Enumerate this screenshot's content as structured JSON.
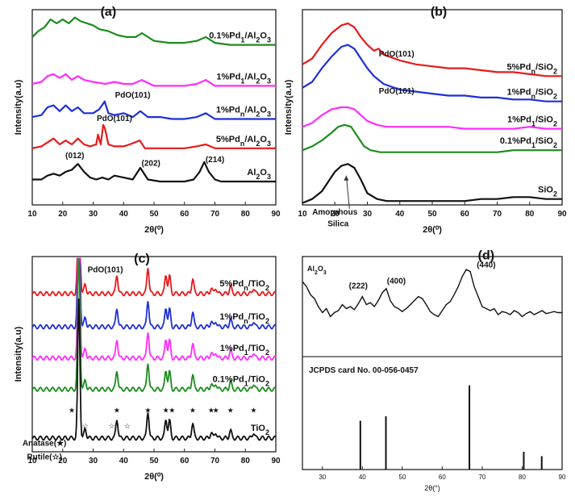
{
  "colors": {
    "red": "#e8191b",
    "blue": "#1f2fd8",
    "magenta": "#ff2bff",
    "green": "#1c8c1c",
    "black": "#111111"
  },
  "chart_data": [
    {
      "panel": "(a)",
      "type": "line",
      "xlabel": "2θ(⁰)",
      "ylabel": "Intensity(a.u)",
      "xlim": [
        10,
        90
      ],
      "xticks": [
        "10",
        "20",
        "30",
        "40",
        "50",
        "60",
        "70",
        "80",
        "90"
      ],
      "series": [
        {
          "name": "0.1%Pd1/Al2O3",
          "label_html": "0.1%Pd<tspan baseline-shift='sub' font-size='9'>1</tspan>/Al<tspan baseline-shift='sub' font-size='9'>2</tspan>O<tspan baseline-shift='sub' font-size='9'>3</tspan>",
          "color": "green",
          "x": [
            10,
            12,
            14,
            16,
            18,
            20,
            22,
            24,
            26,
            28,
            30,
            32,
            35,
            38,
            41,
            44,
            46,
            50,
            55,
            60,
            64,
            67,
            70,
            75,
            80,
            85,
            90
          ],
          "y": [
            0.86,
            0.89,
            0.91,
            0.95,
            0.93,
            0.95,
            0.93,
            0.96,
            0.94,
            0.93,
            0.92,
            0.9,
            0.89,
            0.87,
            0.86,
            0.86,
            0.88,
            0.84,
            0.83,
            0.83,
            0.84,
            0.86,
            0.83,
            0.82,
            0.82,
            0.82,
            0.82
          ]
        },
        {
          "name": "1%Pd1/Al2O3",
          "label_html": "1%Pd<tspan baseline-shift='sub' font-size='9'>1</tspan>/Al<tspan baseline-shift='sub' font-size='9'>2</tspan>O<tspan baseline-shift='sub' font-size='9'>3</tspan>",
          "color": "magenta",
          "x": [
            10,
            13,
            15,
            17,
            19,
            21,
            23,
            25,
            27,
            30,
            34,
            37,
            40,
            43,
            46,
            50,
            55,
            60,
            64,
            67,
            70,
            75,
            80,
            85,
            90
          ],
          "y": [
            0.62,
            0.63,
            0.66,
            0.67,
            0.65,
            0.67,
            0.64,
            0.66,
            0.64,
            0.63,
            0.62,
            0.63,
            0.62,
            0.62,
            0.64,
            0.61,
            0.61,
            0.61,
            0.62,
            0.64,
            0.61,
            0.61,
            0.61,
            0.61,
            0.61
          ]
        },
        {
          "name": "1%Pdn/Al2O3",
          "label_html": "1%Pd<tspan baseline-shift='sub' font-size='9'>n</tspan>/Al<tspan baseline-shift='sub' font-size='9'>2</tspan>O<tspan baseline-shift='sub' font-size='9'>3</tspan>",
          "color": "blue",
          "x": [
            10,
            13,
            15,
            17,
            19,
            21,
            23,
            25,
            27,
            30,
            32,
            33.8,
            35,
            37,
            40,
            43,
            45.5,
            48,
            52,
            56,
            60,
            64,
            67,
            70,
            75,
            80,
            85,
            90
          ],
          "y": [
            0.45,
            0.46,
            0.5,
            0.51,
            0.48,
            0.51,
            0.48,
            0.5,
            0.47,
            0.47,
            0.49,
            0.53,
            0.47,
            0.46,
            0.47,
            0.45,
            0.48,
            0.45,
            0.45,
            0.44,
            0.44,
            0.45,
            0.47,
            0.44,
            0.44,
            0.44,
            0.44,
            0.44
          ]
        },
        {
          "name": "5%Pdn/Al2O3",
          "label_html": "5%Pd<tspan baseline-shift='sub' font-size='9'>n</tspan>/Al<tspan baseline-shift='sub' font-size='9'>2</tspan>O<tspan baseline-shift='sub' font-size='9'>3</tspan>",
          "color": "red",
          "x": [
            10,
            13,
            15,
            17,
            19,
            21,
            23,
            25,
            27,
            29,
            31,
            31.6,
            32.5,
            33.3,
            33.9,
            35,
            37,
            40,
            42,
            45.3,
            47,
            50,
            55,
            60,
            64,
            67,
            70,
            75,
            80,
            85,
            90
          ],
          "y": [
            0.29,
            0.3,
            0.32,
            0.34,
            0.31,
            0.33,
            0.31,
            0.34,
            0.31,
            0.3,
            0.31,
            0.36,
            0.31,
            0.41,
            0.39,
            0.31,
            0.3,
            0.3,
            0.31,
            0.33,
            0.29,
            0.29,
            0.29,
            0.29,
            0.3,
            0.31,
            0.29,
            0.29,
            0.29,
            0.29,
            0.29
          ]
        },
        {
          "name": "Al2O3",
          "label_html": "Al<tspan baseline-shift='sub' font-size='9'>2</tspan>O<tspan baseline-shift='sub' font-size='9'>3</tspan>",
          "color": "black",
          "x": [
            10,
            13,
            15,
            17,
            19,
            21,
            23,
            25,
            27,
            29,
            31,
            33,
            35,
            37,
            40,
            43,
            45.5,
            48,
            52,
            56,
            60,
            63,
            65,
            66.5,
            68,
            70,
            72,
            75,
            80,
            85,
            90
          ],
          "y": [
            0.13,
            0.13,
            0.15,
            0.16,
            0.15,
            0.17,
            0.18,
            0.21,
            0.17,
            0.14,
            0.13,
            0.14,
            0.13,
            0.15,
            0.14,
            0.13,
            0.19,
            0.13,
            0.12,
            0.12,
            0.12,
            0.13,
            0.17,
            0.22,
            0.17,
            0.13,
            0.12,
            0.12,
            0.12,
            0.12,
            0.12
          ]
        }
      ],
      "annotations": [
        {
          "text": "(a)",
          "x": 35,
          "y": 0.97,
          "size": 16
        },
        {
          "text": "PdO(101)",
          "x": 43,
          "y": 0.55,
          "size": 10
        },
        {
          "text": "PdO(101)",
          "x": 37,
          "y": 0.43,
          "size": 10
        },
        {
          "text": "(012)",
          "x": 24,
          "y": 0.24,
          "size": 10
        },
        {
          "text": "(202)",
          "x": 49,
          "y": 0.2,
          "size": 10
        },
        {
          "text": "(214)",
          "x": 70,
          "y": 0.22,
          "size": 10
        }
      ]
    },
    {
      "panel": "(b)",
      "type": "line",
      "xlabel": "2θ(⁰)",
      "ylabel": "Intensity(a.u)",
      "xlim": [
        10,
        90
      ],
      "xticks": [
        "10",
        "20",
        "30",
        "40",
        "50",
        "60",
        "70",
        "80",
        "90"
      ],
      "series": [
        {
          "name": "5%Pdn/SiO2",
          "label_html": "5%Pd<tspan baseline-shift='sub' font-size='9'>n</tspan>/SiO<tspan baseline-shift='sub' font-size='9'>2</tspan>",
          "color": "red",
          "x": [
            10,
            13,
            16,
            19,
            22,
            24,
            26,
            28,
            30,
            32,
            33.5,
            35,
            40,
            45,
            50,
            55,
            60,
            65,
            70,
            75,
            80,
            85,
            90
          ],
          "y": [
            0.72,
            0.75,
            0.82,
            0.88,
            0.92,
            0.93,
            0.91,
            0.86,
            0.82,
            0.79,
            0.8,
            0.77,
            0.74,
            0.72,
            0.71,
            0.7,
            0.7,
            0.69,
            0.68,
            0.68,
            0.67,
            0.66,
            0.66
          ]
        },
        {
          "name": "1%Pdn/SiO2",
          "label_html": "1%Pd<tspan baseline-shift='sub' font-size='9'>n</tspan>/SiO<tspan baseline-shift='sub' font-size='9'>2</tspan>",
          "color": "blue",
          "x": [
            10,
            13,
            16,
            19,
            22,
            24,
            26,
            28,
            30,
            32,
            33.5,
            35,
            40,
            45,
            50,
            55,
            60,
            65,
            70,
            75,
            80,
            85,
            90
          ],
          "y": [
            0.6,
            0.63,
            0.7,
            0.76,
            0.81,
            0.82,
            0.8,
            0.75,
            0.7,
            0.66,
            0.64,
            0.62,
            0.59,
            0.58,
            0.57,
            0.56,
            0.56,
            0.55,
            0.55,
            0.54,
            0.54,
            0.53,
            0.53
          ]
        },
        {
          "name": "1%Pd1/SiO2",
          "label_html": "1%Pd<tspan baseline-shift='sub' font-size='9'>1</tspan>/SiO<tspan baseline-shift='sub' font-size='9'>2</tspan>",
          "color": "magenta",
          "x": [
            10,
            13,
            16,
            19,
            22,
            24,
            26,
            28,
            30,
            33,
            36,
            40,
            45,
            50,
            55,
            60,
            65,
            70,
            75,
            80,
            85,
            90
          ],
          "y": [
            0.4,
            0.42,
            0.46,
            0.49,
            0.5,
            0.5,
            0.49,
            0.46,
            0.43,
            0.41,
            0.4,
            0.4,
            0.4,
            0.4,
            0.4,
            0.39,
            0.39,
            0.39,
            0.39,
            0.4,
            0.39,
            0.39
          ]
        },
        {
          "name": "0.1%Pd1/SiO2",
          "label_html": "0.1%Pd<tspan baseline-shift='sub' font-size='9'>1</tspan>/SiO<tspan baseline-shift='sub' font-size='9'>2</tspan>",
          "color": "green",
          "x": [
            10,
            13,
            16,
            19,
            21,
            23,
            25,
            27,
            29,
            31,
            34,
            38,
            45,
            50,
            55,
            60,
            65,
            70,
            75,
            80,
            85,
            90
          ],
          "y": [
            0.28,
            0.3,
            0.33,
            0.37,
            0.4,
            0.41,
            0.4,
            0.35,
            0.3,
            0.28,
            0.27,
            0.27,
            0.27,
            0.27,
            0.27,
            0.27,
            0.27,
            0.27,
            0.28,
            0.28,
            0.28,
            0.28
          ]
        },
        {
          "name": "SiO2",
          "label_html": "SiO<tspan baseline-shift='sub' font-size='9'>2</tspan>",
          "color": "black",
          "x": [
            10,
            13,
            16,
            18,
            20,
            22,
            24,
            26,
            28,
            30,
            33,
            36,
            40,
            45,
            50,
            55,
            60,
            65,
            70,
            75,
            80,
            85,
            90
          ],
          "y": [
            0.01,
            0.03,
            0.07,
            0.12,
            0.17,
            0.2,
            0.21,
            0.19,
            0.13,
            0.06,
            0.03,
            0.02,
            0.02,
            0.02,
            0.02,
            0.02,
            0.02,
            0.03,
            0.03,
            0.04,
            0.04,
            0.03,
            0.03
          ]
        }
      ],
      "annotations": [
        {
          "text": "(b)",
          "x": 52,
          "y": 0.97,
          "size": 16
        },
        {
          "text": "PdO(101)",
          "x": 39,
          "y": 0.76,
          "size": 10
        },
        {
          "text": "PdO(101)",
          "x": 39,
          "y": 0.57,
          "size": 10
        },
        {
          "text": "Amorphous",
          "x": 20,
          "y": -0.05,
          "size": 10
        },
        {
          "text": "Silica",
          "x": 21,
          "y": -0.11,
          "size": 10
        }
      ]
    },
    {
      "panel": "(c)",
      "type": "line",
      "xlabel": "2θ(⁰)",
      "ylabel": "Intensity(a.u)",
      "xlim": [
        10,
        90
      ],
      "xticks": [
        "10",
        "20",
        "30",
        "40",
        "50",
        "60",
        "70",
        "80",
        "90"
      ],
      "series": [
        {
          "name": "5%Pdn/TiO2",
          "label_html": "5%Pd<tspan baseline-shift='sub' font-size='9'>n</tspan>/TiO<tspan baseline-shift='sub' font-size='9'>2</tspan>",
          "color": "red",
          "base": 0.81
        },
        {
          "name": "1%Pdn/TiO2",
          "label_html": "1%Pd<tspan baseline-shift='sub' font-size='9'>n</tspan>/TiO<tspan baseline-shift='sub' font-size='9'>2</tspan>",
          "color": "blue",
          "base": 0.64
        },
        {
          "name": "1%Pd1/TiO2",
          "label_html": "1%Pd<tspan baseline-shift='sub' font-size='9'>1</tspan>/TiO<tspan baseline-shift='sub' font-size='9'>2</tspan>",
          "color": "magenta",
          "base": 0.48
        },
        {
          "name": "0.1%Pd1/TiO2",
          "label_html": "0.1%Pd<tspan baseline-shift='sub' font-size='9'>1</tspan>/TiO<tspan baseline-shift='sub' font-size='9'>2</tspan>",
          "color": "green",
          "base": 0.32
        },
        {
          "name": "TiO2",
          "label_html": "TiO<tspan baseline-shift='sub' font-size='9'>2</tspan>",
          "color": "black",
          "base": 0.07
        }
      ],
      "peaks": [
        {
          "x": 25.3,
          "h": 0.75
        },
        {
          "x": 27.4,
          "h": 0.05
        },
        {
          "x": 37.8,
          "h": 0.1
        },
        {
          "x": 48.0,
          "h": 0.14
        },
        {
          "x": 53.9,
          "h": 0.1
        },
        {
          "x": 55.1,
          "h": 0.09
        },
        {
          "x": 62.7,
          "h": 0.08
        },
        {
          "x": 68.8,
          "h": 0.03
        },
        {
          "x": 70.3,
          "h": 0.03
        },
        {
          "x": 75.1,
          "h": 0.04
        },
        {
          "x": 82.7,
          "h": 0.03
        }
      ],
      "anatase_marks": [
        23,
        37.8,
        48.0,
        53.9,
        55.9,
        62.7,
        68.8,
        70.3,
        75.1,
        82.7
      ],
      "rutile_marks": [
        27.4,
        36.1,
        41.2
      ],
      "annotations": [
        {
          "text": "(c)",
          "x": 46,
          "y": 0.97,
          "size": 16
        },
        {
          "text": "PdO(101)",
          "x": 34,
          "y": 0.92,
          "size": 10
        },
        {
          "text": "Anatase(★)",
          "x": 14,
          "y": 0.03,
          "size": 10
        },
        {
          "text": "Rutile(☆)",
          "x": 14,
          "y": -0.04,
          "size": 10
        }
      ]
    },
    {
      "panel": "(d)",
      "type": "line",
      "xlabel": "2θ(°)",
      "xlim": [
        25,
        90
      ],
      "xticks": [
        "30",
        "40",
        "50",
        "60",
        "70",
        "80",
        "90"
      ],
      "series_title_html": "Al<tspan baseline-shift='sub' font-size='7'>2</tspan>O<tspan baseline-shift='sub' font-size='7'>3</tspan>",
      "card_label": "JCPDS card No. 00-056-0457",
      "pattern": {
        "x": [
          25,
          26,
          27,
          28,
          29,
          30,
          31,
          32,
          33,
          34,
          35,
          36,
          37,
          38,
          39,
          40,
          41,
          42,
          43,
          44,
          45,
          46,
          47,
          48,
          49,
          50,
          51,
          52,
          53,
          54,
          55,
          56,
          57,
          58,
          59,
          60,
          61,
          62,
          63,
          64,
          65,
          66,
          67,
          68,
          69,
          70,
          71,
          72,
          73,
          74,
          75,
          76,
          77,
          78,
          79,
          80,
          81,
          82,
          83,
          84,
          85,
          86,
          87,
          88,
          89,
          90
        ],
        "y": [
          0.75,
          0.7,
          0.62,
          0.58,
          0.5,
          0.44,
          0.48,
          0.4,
          0.44,
          0.46,
          0.52,
          0.48,
          0.5,
          0.47,
          0.53,
          0.6,
          0.52,
          0.54,
          0.5,
          0.56,
          0.64,
          0.68,
          0.56,
          0.5,
          0.48,
          0.45,
          0.48,
          0.52,
          0.56,
          0.6,
          0.58,
          0.52,
          0.45,
          0.42,
          0.4,
          0.46,
          0.52,
          0.55,
          0.62,
          0.7,
          0.8,
          0.87,
          0.85,
          0.7,
          0.6,
          0.5,
          0.48,
          0.46,
          0.48,
          0.42,
          0.45,
          0.44,
          0.42,
          0.46,
          0.44,
          0.4,
          0.43,
          0.45,
          0.42,
          0.44,
          0.46,
          0.43,
          0.44,
          0.45,
          0.44,
          0.44
        ]
      },
      "reference_lines": [
        {
          "x": 39.5,
          "h": 0.55
        },
        {
          "x": 45.9,
          "h": 0.6
        },
        {
          "x": 66.8,
          "h": 0.95
        },
        {
          "x": 80.4,
          "h": 0.2
        },
        {
          "x": 84.9,
          "h": 0.15
        }
      ],
      "annotations": [
        {
          "text": "(d)",
          "x": 71,
          "y": 0.97,
          "size": 16
        },
        {
          "text": "(222)",
          "x": 39,
          "y": 0.68,
          "size": 10
        },
        {
          "text": "(400)",
          "x": 48.5,
          "y": 0.73,
          "size": 10
        },
        {
          "text": "(440)",
          "x": 71,
          "y": 0.89,
          "size": 10
        }
      ]
    }
  ]
}
